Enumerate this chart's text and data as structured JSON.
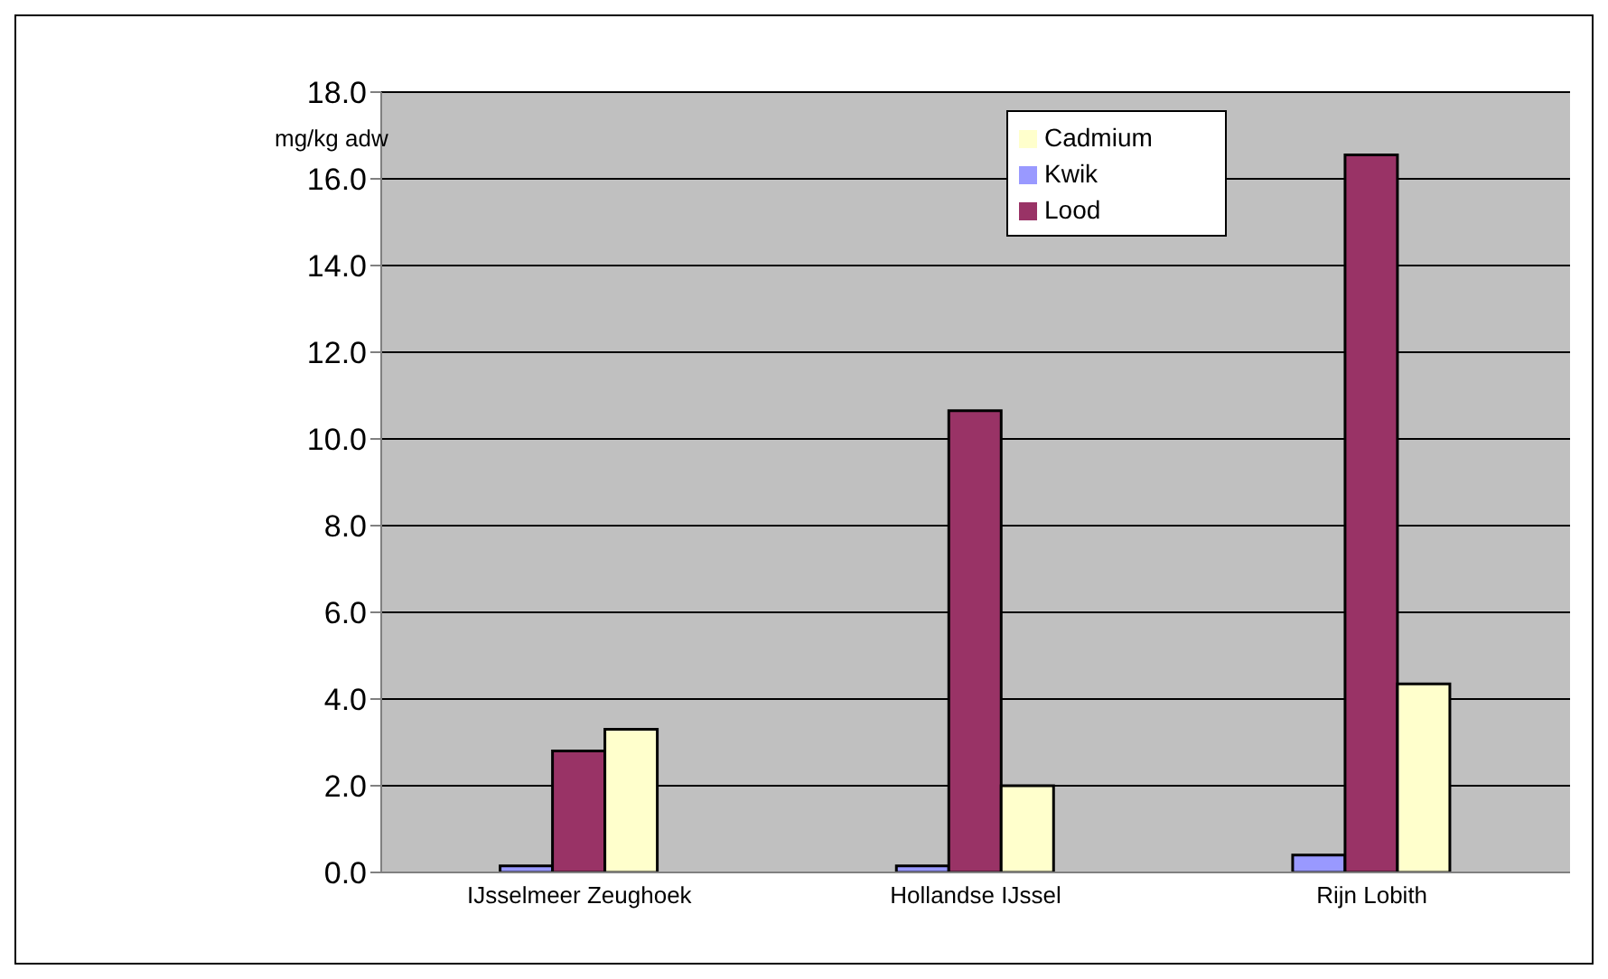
{
  "chart_data": {
    "type": "bar",
    "categories": [
      "IJsselmeer Zeughoek",
      "Hollandse IJssel",
      "Rijn Lobith"
    ],
    "series": [
      {
        "name": "Kwik",
        "color": "#9999ff",
        "values": [
          0.15,
          0.15,
          0.4
        ]
      },
      {
        "name": "Lood",
        "color": "#993366",
        "values": [
          2.8,
          10.65,
          16.55
        ]
      },
      {
        "name": "Cadmium",
        "color": "#ffffcc",
        "values": [
          3.3,
          2.0,
          4.35
        ]
      }
    ],
    "ylim": [
      0,
      18
    ],
    "yticks": [
      {
        "value": 0,
        "label": "0.0"
      },
      {
        "value": 2,
        "label": "2.0"
      },
      {
        "value": 4,
        "label": "4.0"
      },
      {
        "value": 6,
        "label": "6.0"
      },
      {
        "value": 8,
        "label": "8.0"
      },
      {
        "value": 10,
        "label": "10.0"
      },
      {
        "value": 12,
        "label": "12.0"
      },
      {
        "value": 14,
        "label": "14.0"
      },
      {
        "value": 16,
        "label": "16.0"
      },
      {
        "value": 18,
        "label": "18.0"
      }
    ],
    "grid": "y",
    "legend": "top",
    "annotations": [
      "mg/kg adw"
    ]
  }
}
